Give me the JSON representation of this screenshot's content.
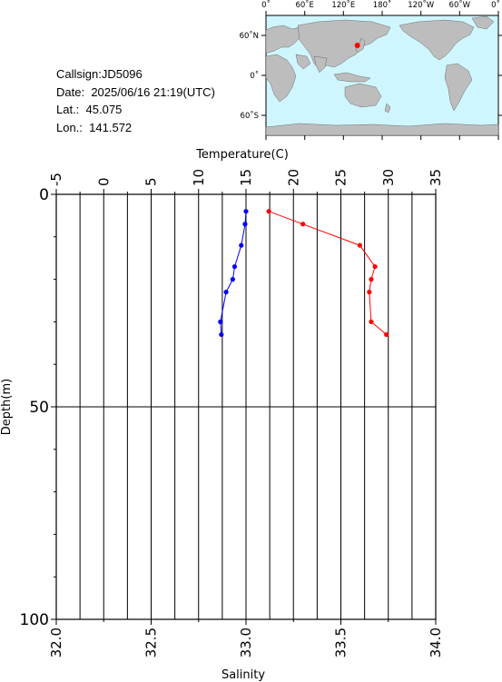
{
  "station": {
    "callsign_label": "Callsign:",
    "callsign": "JD5096",
    "date_label": "Date:",
    "date": "2025/06/16 21:19(UTC)",
    "lat_label": "Lat.:",
    "lat": "45.075",
    "lon_label": "Lon.:",
    "lon": "141.572"
  },
  "map": {
    "top_labels": [
      "0˚",
      "60˚E",
      "120˚E",
      "180˚",
      "120˚W",
      "60˚W",
      "0˚"
    ],
    "left_labels": [
      "60˚N",
      "0˚",
      "60˚S"
    ],
    "ocean_color": "#cff6ff",
    "land_color": "#bdbdbd",
    "marker_color": "#ff0000",
    "marker": {
      "lon": 141.572,
      "lat": 45.075
    }
  },
  "chart_data": {
    "type": "line",
    "ylabel": "Depth(m)",
    "ylim": [
      0,
      100
    ],
    "yticks": [
      0,
      50,
      100
    ],
    "y_inverted": true,
    "top_axis": {
      "label": "Temperature(C)",
      "lim": [
        -5,
        35
      ],
      "ticks": [
        "-5",
        "0",
        "5",
        "10",
        "15",
        "20",
        "25",
        "30",
        "35"
      ]
    },
    "bottom_axis": {
      "label": "Salinity",
      "lim": [
        32.0,
        34.0
      ],
      "ticks": [
        "32.0",
        "32.5",
        "33.0",
        "33.5",
        "34.0"
      ]
    },
    "grid": true,
    "series": [
      {
        "axis": "top",
        "color": "#0000ff",
        "points": [
          {
            "x": 15.0,
            "y": 4
          },
          {
            "x": 14.9,
            "y": 7
          },
          {
            "x": 14.5,
            "y": 12
          },
          {
            "x": 13.8,
            "y": 17
          },
          {
            "x": 13.6,
            "y": 20
          },
          {
            "x": 12.9,
            "y": 23
          },
          {
            "x": 12.3,
            "y": 30
          },
          {
            "x": 12.4,
            "y": 33
          }
        ]
      },
      {
        "axis": "bottom",
        "color": "#ff0000",
        "points": [
          {
            "x": 33.12,
            "y": 4
          },
          {
            "x": 33.3,
            "y": 7
          },
          {
            "x": 33.6,
            "y": 12
          },
          {
            "x": 33.68,
            "y": 17
          },
          {
            "x": 33.66,
            "y": 20
          },
          {
            "x": 33.65,
            "y": 23
          },
          {
            "x": 33.66,
            "y": 30
          },
          {
            "x": 33.74,
            "y": 33
          }
        ]
      }
    ]
  }
}
